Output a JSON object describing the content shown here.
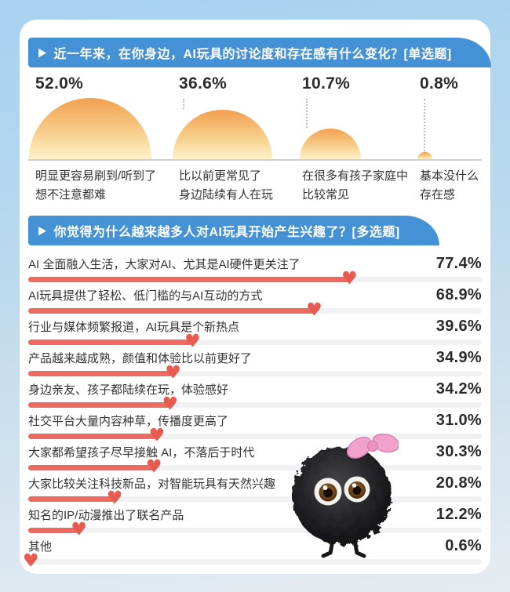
{
  "icons": {
    "play_arrow": "▶",
    "heart": "♥"
  },
  "colors": {
    "banner_blue": "#4491d5",
    "bar_red": "#ec6a60",
    "heart_red": "#e85b50",
    "semicircle_top": "#f1a050",
    "semicircle_bottom": "#fdf2ca",
    "page_bg_top": "#a6d2f0",
    "page_bg_bottom": "#e6ecf0",
    "card_bg": "#ffffff"
  },
  "section1": {
    "title": "近一年来，在你身边，AI玩具的讨论度和存在感有什么变化？[单选题]",
    "items": [
      {
        "pct": "52.0%",
        "value": 52.0,
        "label_line1": "明显更容易刷到/听到了",
        "label_line2": "想不注意都难"
      },
      {
        "pct": "36.6%",
        "value": 36.6,
        "label_line1": "比以前更常见了",
        "label_line2": "身边陆续有人在玩"
      },
      {
        "pct": "10.7%",
        "value": 10.7,
        "label_line1": "在很多有孩子家庭中",
        "label_line2": "比较常见"
      },
      {
        "pct": "0.8%",
        "value": 0.8,
        "label_line1": "基本没什么",
        "label_line2": "存在感"
      }
    ]
  },
  "section2": {
    "title": "你觉得为什么越来越多人对AI玩具开始产生兴趣了？[多选题]",
    "rows": [
      {
        "label": "AI 全面融入生活，大家对AI、尤其是AI硬件更关注了",
        "pct": "77.4%",
        "value": 77.4
      },
      {
        "label": "AI玩具提供了轻松、低门槛的与AI互动的方式",
        "pct": "68.9%",
        "value": 68.9
      },
      {
        "label": "行业与媒体频繁报道，AI玩具是个新热点",
        "pct": "39.6%",
        "value": 39.6
      },
      {
        "label": "产品越来越成熟，颜值和体验比以前更好了",
        "pct": "34.9%",
        "value": 34.9
      },
      {
        "label": "身边亲友、孩子都陆续在玩，体验感好",
        "pct": "34.2%",
        "value": 34.2
      },
      {
        "label": "社交平台大量内容种草，传播度更高了",
        "pct": "31.0%",
        "value": 31.0
      },
      {
        "label": "大家都希望孩子尽早接触 AI，不落后于时代",
        "pct": "30.3%",
        "value": 30.3
      },
      {
        "label": "大家比较关注科技新品，对智能玩具有天然兴趣",
        "pct": "20.8%",
        "value": 20.8
      },
      {
        "label": "知名的IP/动漫推出了联名产品",
        "pct": "12.2%",
        "value": 12.2
      },
      {
        "label": "其他",
        "pct": "0.6%",
        "value": 0.6
      }
    ]
  },
  "mascot": {
    "description": "black fluffy pom-pom character with big brown eyes, pink bow and thin black legs"
  },
  "chart_data": [
    {
      "type": "bar",
      "variant": "proportional-semicircle-area",
      "title": "近一年来，在你身边，AI玩具的讨论度和存在感有什么变化？[单选题]",
      "categories": [
        "明显更容易刷到/听到了 想不注意都难",
        "比以前更常见了 身边陆续有人在玩",
        "在很多有孩子家庭中 比较常见",
        "基本没什么 存在感"
      ],
      "values": [
        52.0,
        36.6,
        10.7,
        0.8
      ],
      "unit": "%",
      "xlabel": "",
      "ylabel": "",
      "legend": false,
      "grid": false
    },
    {
      "type": "bar",
      "variant": "horizontal-bars-with-heart-marker",
      "title": "你觉得为什么越来越多人对AI玩具开始产生兴趣了？[多选题]",
      "categories": [
        "AI 全面融入生活，大家对AI、尤其是AI硬件更关注了",
        "AI玩具提供了轻松、低门槛的与AI互动的方式",
        "行业与媒体频繁报道，AI玩具是个新热点",
        "产品越来越成熟，颜值和体验比以前更好了",
        "身边亲友、孩子都陆续在玩，体验感好",
        "社交平台大量内容种草，传播度更高了",
        "大家都希望孩子尽早接触 AI，不落后于时代",
        "大家比较关注科技新品，对智能玩具有天然兴趣",
        "知名的IP/动漫推出了联名产品",
        "其他"
      ],
      "values": [
        77.4,
        68.9,
        39.6,
        34.9,
        34.2,
        31.0,
        30.3,
        20.8,
        12.2,
        0.6
      ],
      "unit": "%",
      "xlim": [
        0,
        100
      ],
      "xlabel": "",
      "ylabel": "",
      "legend": false,
      "grid": false
    }
  ]
}
